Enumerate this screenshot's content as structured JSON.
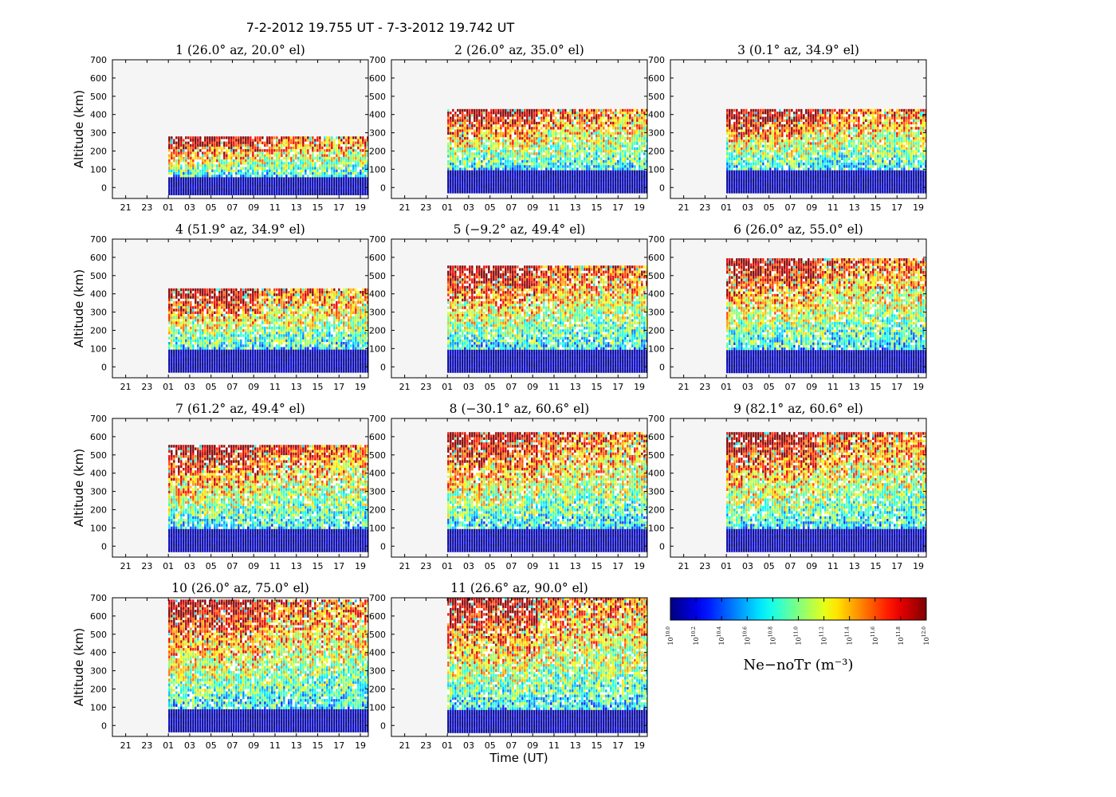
{
  "figure": {
    "suptitle": "7-2-2012 19.755 UT - 7-3-2012 19.742 UT",
    "xlabel": "Time (UT)",
    "ylabel": "Altitude (km)"
  },
  "colorbar": {
    "label": "Ne−noTr (m⁻³)",
    "ticks": [
      "10.0",
      "10.2",
      "10.4",
      "10.6",
      "10.8",
      "11.0",
      "11.2",
      "11.4",
      "11.6",
      "11.8",
      "12.0"
    ],
    "tick_base": "10",
    "vmin_log10": 10.0,
    "vmax_log10": 12.0,
    "colormap": "jet"
  },
  "colors": {
    "axes_bg": "#f5f5f5",
    "no_data": "#ffffff"
  },
  "chart_data": {
    "type": "heatmap",
    "xlabel": "Time (UT)",
    "ylabel": "Altitude (km)",
    "x_range_hours": [
      19.755,
      43.742
    ],
    "ylim": [
      -60,
      700
    ],
    "xticks": [
      "21",
      "23",
      "01",
      "03",
      "05",
      "07",
      "09",
      "11",
      "13",
      "15",
      "17",
      "19"
    ],
    "yticks": [
      "0",
      "100",
      "200",
      "300",
      "400",
      "500",
      "600",
      "700"
    ],
    "panels": [
      {
        "title": "1 (26.0°  az, 20.0°  el)",
        "data_start_hour": 25.0,
        "alt_min": -30,
        "alt_max": 280,
        "low_alt_top": 60
      },
      {
        "title": "2 (26.0°  az, 35.0°  el)",
        "data_start_hour": 25.0,
        "alt_min": -30,
        "alt_max": 430,
        "low_alt_top": 100
      },
      {
        "title": "3 (0.1°  az, 34.9°  el)",
        "data_start_hour": 25.0,
        "alt_min": -30,
        "alt_max": 430,
        "low_alt_top": 100
      },
      {
        "title": "4 (51.9°  az, 34.9°  el)",
        "data_start_hour": 25.0,
        "alt_min": -30,
        "alt_max": 430,
        "low_alt_top": 100
      },
      {
        "title": "5 (−9.2°  az, 49.4°  el)",
        "data_start_hour": 25.0,
        "alt_min": -30,
        "alt_max": 555,
        "low_alt_top": 100
      },
      {
        "title": "6 (26.0°  az, 55.0°  el)",
        "data_start_hour": 25.0,
        "alt_min": -30,
        "alt_max": 595,
        "low_alt_top": 100
      },
      {
        "title": "7 (61.2°  az, 49.4°  el)",
        "data_start_hour": 25.0,
        "alt_min": -30,
        "alt_max": 555,
        "low_alt_top": 100
      },
      {
        "title": "8 (−30.1°  az, 60.6°  el)",
        "data_start_hour": 25.0,
        "alt_min": -30,
        "alt_max": 625,
        "low_alt_top": 100
      },
      {
        "title": "9 (82.1°  az, 60.6°  el)",
        "data_start_hour": 25.0,
        "alt_min": -30,
        "alt_max": 625,
        "low_alt_top": 100
      },
      {
        "title": "10 (26.0°  az, 75.0°  el)",
        "data_start_hour": 25.0,
        "alt_min": -30,
        "alt_max": 690,
        "low_alt_top": 100
      },
      {
        "title": "11 (26.6°  az, 90.0°  el)",
        "data_start_hour": 25.0,
        "alt_min": -30,
        "alt_max": 700,
        "low_alt_top": 95
      }
    ]
  }
}
